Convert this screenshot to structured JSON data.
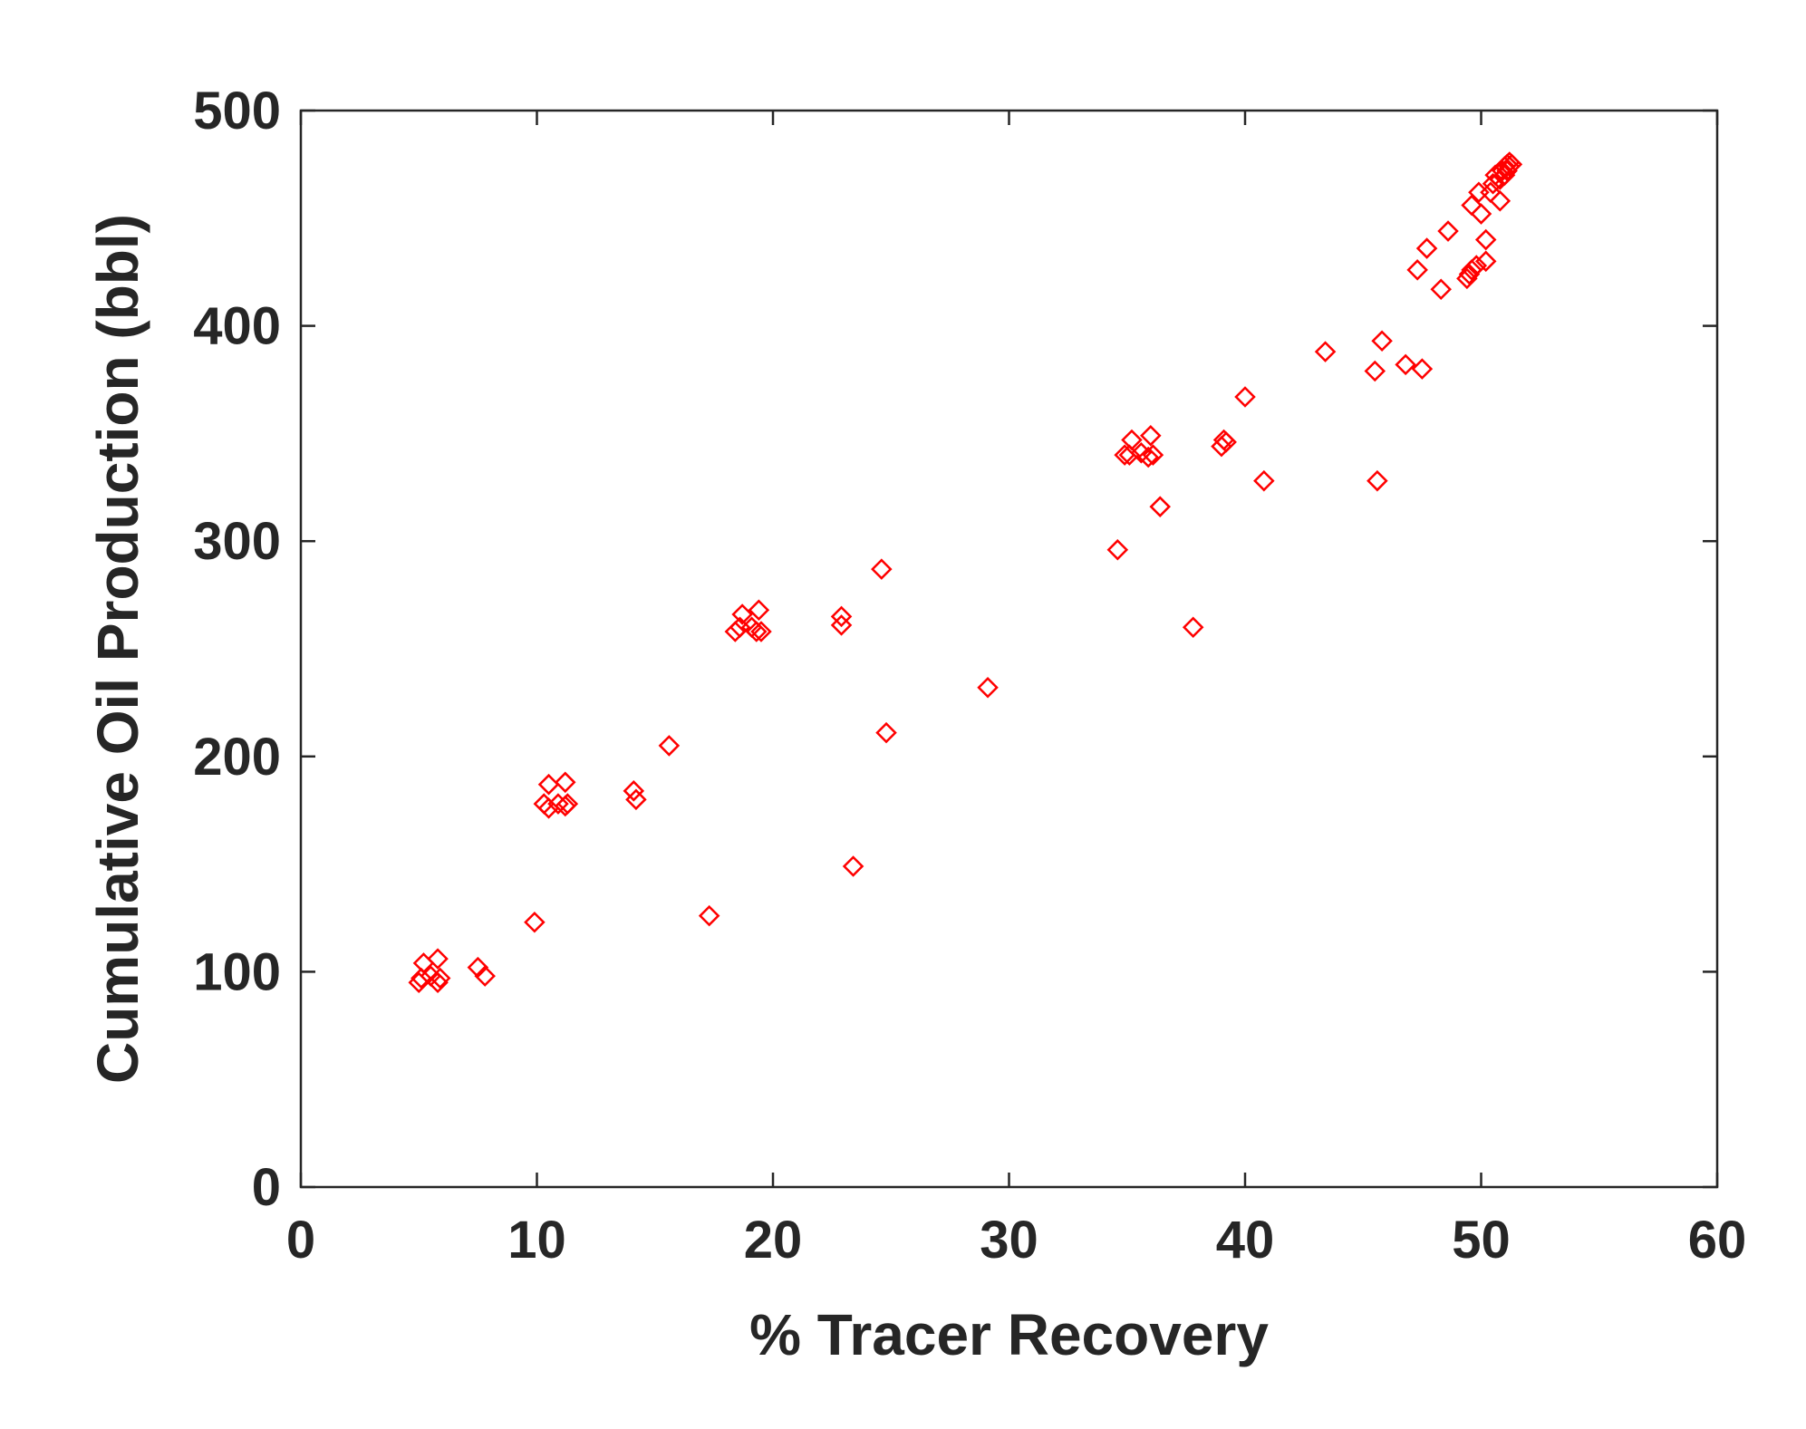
{
  "chart_data": {
    "type": "scatter",
    "title": "",
    "xlabel": "% Tracer Recovery",
    "ylabel": "Cumulative Oil Production (bbl)",
    "xlim": [
      0,
      60
    ],
    "ylim": [
      0,
      500
    ],
    "xticks": [
      0,
      10,
      20,
      30,
      40,
      50,
      60
    ],
    "yticks": [
      0,
      100,
      200,
      300,
      400,
      500
    ],
    "xtick_labels": [
      "0",
      "10",
      "20",
      "30",
      "40",
      "50",
      "60"
    ],
    "ytick_labels": [
      "0",
      "100",
      "200",
      "300",
      "400",
      "500"
    ],
    "grid": false,
    "marker": "diamond-open",
    "color": "#ff0000",
    "axis_color": "#262626",
    "points": [
      [
        5.0,
        95
      ],
      [
        5.1,
        97
      ],
      [
        5.2,
        104
      ],
      [
        5.5,
        98
      ],
      [
        5.8,
        95
      ],
      [
        5.9,
        97
      ],
      [
        5.8,
        106
      ],
      [
        7.5,
        102
      ],
      [
        7.8,
        98
      ],
      [
        9.9,
        123
      ],
      [
        10.3,
        178
      ],
      [
        10.5,
        176
      ],
      [
        10.5,
        187
      ],
      [
        10.9,
        178
      ],
      [
        11.2,
        177
      ],
      [
        11.2,
        188
      ],
      [
        11.3,
        178
      ],
      [
        14.1,
        184
      ],
      [
        14.2,
        180
      ],
      [
        15.6,
        205
      ],
      [
        17.3,
        126
      ],
      [
        18.4,
        258
      ],
      [
        18.6,
        260
      ],
      [
        18.7,
        266
      ],
      [
        19.1,
        260
      ],
      [
        19.3,
        258
      ],
      [
        19.4,
        268
      ],
      [
        19.5,
        258
      ],
      [
        22.9,
        265
      ],
      [
        22.9,
        261
      ],
      [
        23.4,
        149
      ],
      [
        24.6,
        287
      ],
      [
        24.8,
        211
      ],
      [
        29.1,
        232
      ],
      [
        34.6,
        296
      ],
      [
        34.9,
        340
      ],
      [
        35.1,
        340
      ],
      [
        35.2,
        347
      ],
      [
        35.6,
        341
      ],
      [
        35.9,
        339
      ],
      [
        36.0,
        349
      ],
      [
        36.1,
        340
      ],
      [
        36.4,
        316
      ],
      [
        37.8,
        260
      ],
      [
        39.0,
        344
      ],
      [
        39.1,
        347
      ],
      [
        39.2,
        346
      ],
      [
        40.0,
        367
      ],
      [
        40.8,
        328
      ],
      [
        43.4,
        388
      ],
      [
        45.5,
        379
      ],
      [
        45.6,
        328
      ],
      [
        45.8,
        393
      ],
      [
        46.8,
        382
      ],
      [
        47.3,
        426
      ],
      [
        47.5,
        380
      ],
      [
        47.7,
        436
      ],
      [
        48.3,
        417
      ],
      [
        48.6,
        444
      ],
      [
        49.4,
        422
      ],
      [
        49.5,
        424
      ],
      [
        49.6,
        426
      ],
      [
        49.6,
        456
      ],
      [
        49.8,
        428
      ],
      [
        49.9,
        462
      ],
      [
        50.0,
        452
      ],
      [
        50.2,
        430
      ],
      [
        50.2,
        440
      ],
      [
        50.4,
        462
      ],
      [
        50.5,
        466
      ],
      [
        50.6,
        470
      ],
      [
        50.8,
        458
      ],
      [
        50.8,
        468
      ],
      [
        50.9,
        472
      ],
      [
        51.0,
        470
      ],
      [
        51.0,
        474
      ],
      [
        51.1,
        472
      ],
      [
        51.1,
        475
      ],
      [
        51.2,
        474
      ],
      [
        51.2,
        476
      ],
      [
        51.3,
        475
      ]
    ]
  }
}
